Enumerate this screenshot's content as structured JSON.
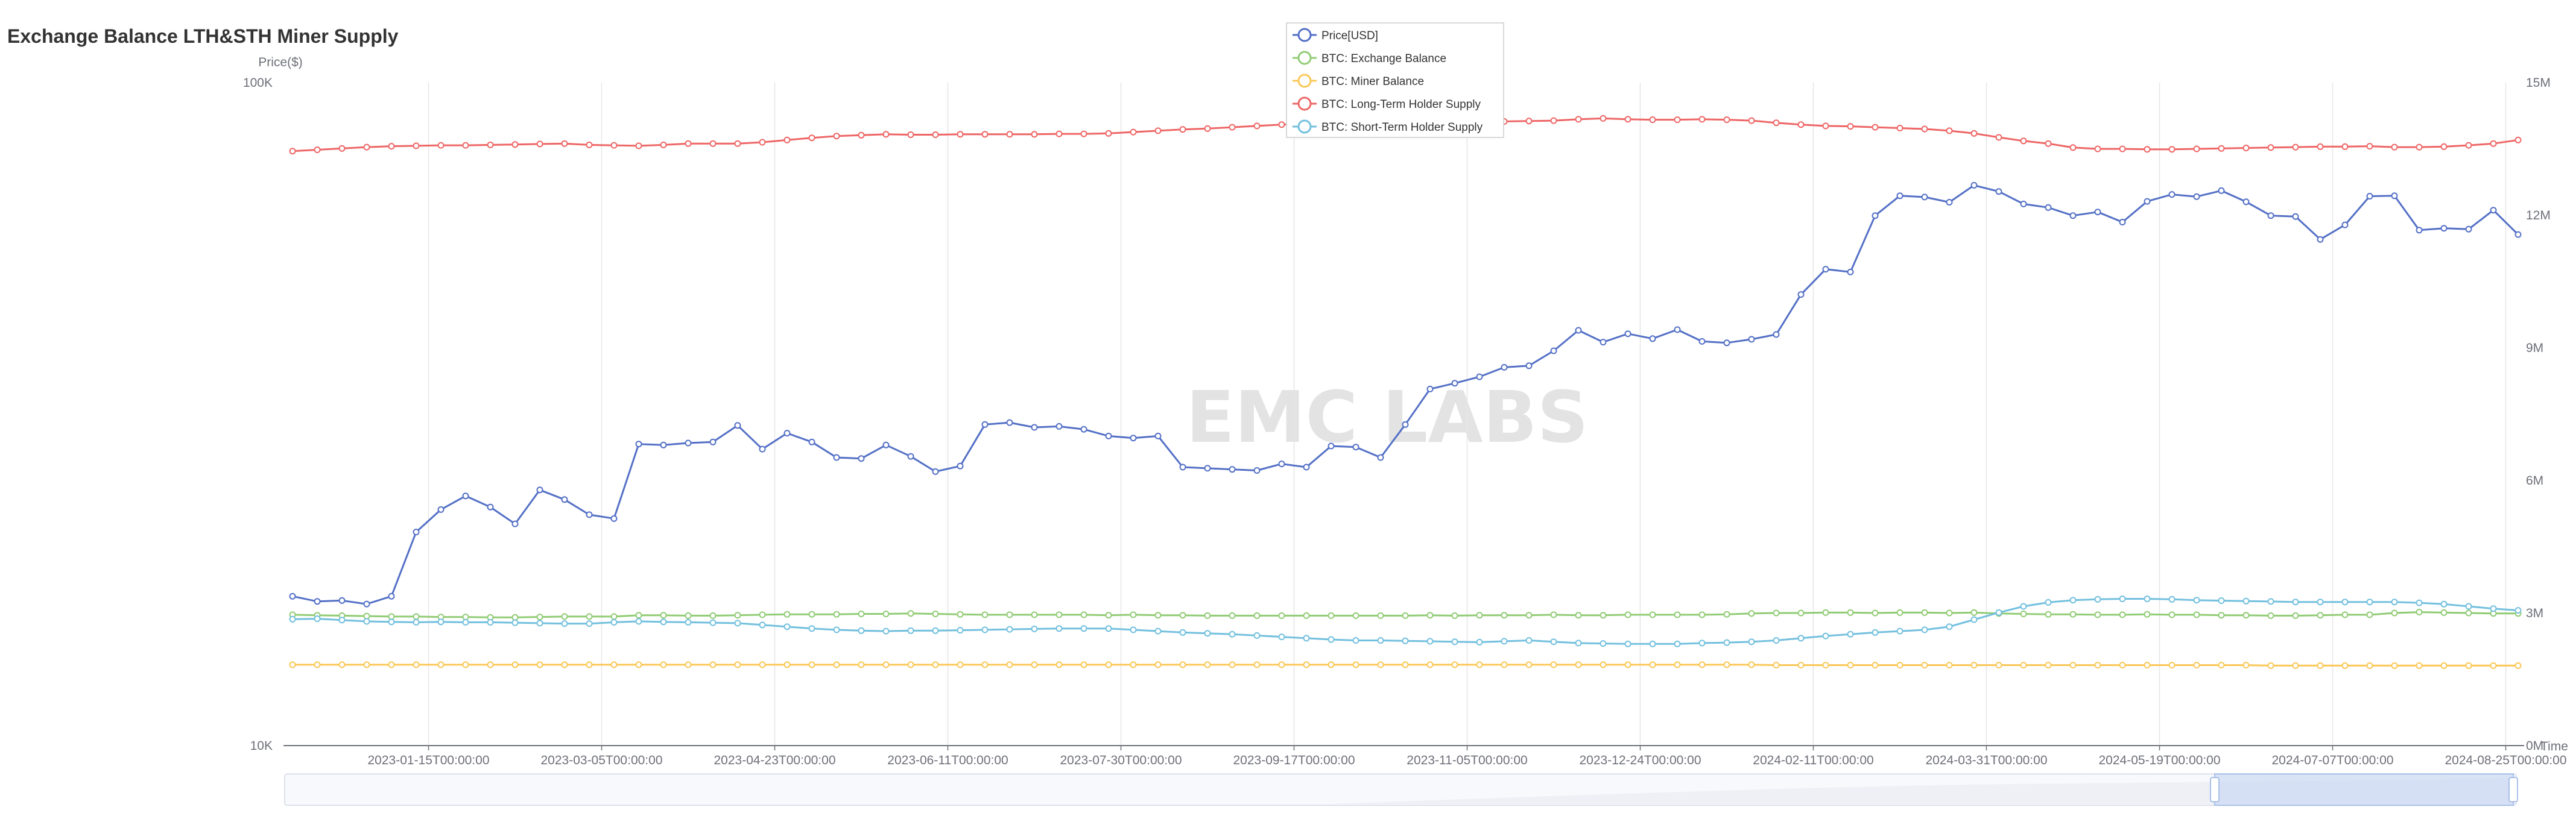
{
  "chart_data": {
    "type": "line",
    "title": "Exchange Balance LTH&STH Miner Supply",
    "watermark": "EMC LABS",
    "left_axis": {
      "name": "Price($)",
      "scale": "log",
      "min_label": "10K",
      "max_label": "100K",
      "min": 10000,
      "max": 100000
    },
    "right_axis": {
      "name": "",
      "min": 0,
      "max": 15000000,
      "ticks": [
        "0M",
        "3M",
        "6M",
        "9M",
        "12M",
        "15M"
      ],
      "tick_values": [
        0,
        3000000,
        6000000,
        9000000,
        12000000,
        15000000
      ]
    },
    "x_axis_name": "Time",
    "x_tick_labels": [
      "2023-01-15T00:00:00",
      "2023-03-05T00:00:00",
      "2023-04-23T00:00:00",
      "2023-06-11T00:00:00",
      "2023-07-30T00:00:00",
      "2023-09-17T00:00:00",
      "2023-11-05T00:00:00",
      "2023-12-24T00:00:00",
      "2024-02-11T00:00:00",
      "2024-03-31T00:00:00",
      "2024-05-19T00:00:00",
      "2024-07-07T00:00:00",
      "2024-08-25T00:00:00"
    ],
    "x_tick_positions": [
      5.5,
      12.5,
      19.5,
      26.5,
      33.5,
      40.5,
      47.5,
      54.5,
      61.5,
      68.5,
      75.5,
      82.5,
      89.5
    ],
    "legend_position": "top-center",
    "grid": "vertical",
    "series": [
      {
        "name": "Price[USD]",
        "color": "#5470c6",
        "axis": "left",
        "values": [
          16800,
          16500,
          16550,
          16350,
          16800,
          21000,
          22700,
          23800,
          22900,
          21600,
          24300,
          23500,
          22300,
          22000,
          28500,
          28400,
          28600,
          28700,
          30400,
          28000,
          29600,
          28700,
          27200,
          27100,
          28400,
          27300,
          25900,
          26400,
          30500,
          30700,
          30200,
          30300,
          30000,
          29300,
          29100,
          29300,
          26300,
          26200,
          26100,
          26000,
          26600,
          26300,
          28300,
          28200,
          27200,
          30500,
          34500,
          35200,
          36000,
          37200,
          37400,
          39400,
          42300,
          40600,
          41800,
          41100,
          42400,
          40700,
          40500,
          41000,
          41700,
          47900,
          52300,
          51800,
          63000,
          67500,
          67200,
          66000,
          70000,
          68500,
          65600,
          64800,
          63000,
          63800,
          61600,
          66200,
          67800,
          67300,
          68700,
          66100,
          63000,
          62800,
          58000,
          61000,
          67400,
          67500,
          59900,
          60300,
          60100,
          64200,
          59000
        ]
      },
      {
        "name": "BTC: Exchange Balance",
        "color": "#91cc75",
        "axis": "right",
        "values": [
          2960000,
          2950000,
          2940000,
          2930000,
          2920000,
          2920000,
          2910000,
          2910000,
          2900000,
          2900000,
          2910000,
          2920000,
          2920000,
          2920000,
          2950000,
          2950000,
          2940000,
          2940000,
          2950000,
          2960000,
          2970000,
          2970000,
          2970000,
          2980000,
          2980000,
          2990000,
          2980000,
          2970000,
          2960000,
          2960000,
          2960000,
          2960000,
          2960000,
          2950000,
          2960000,
          2950000,
          2950000,
          2940000,
          2940000,
          2940000,
          2940000,
          2940000,
          2940000,
          2940000,
          2940000,
          2940000,
          2950000,
          2940000,
          2950000,
          2950000,
          2950000,
          2960000,
          2950000,
          2950000,
          2960000,
          2960000,
          2960000,
          2960000,
          2970000,
          2990000,
          3000000,
          3000000,
          3010000,
          3010000,
          3000000,
          3010000,
          3010000,
          3000000,
          3010000,
          2990000,
          2980000,
          2970000,
          2970000,
          2960000,
          2960000,
          2970000,
          2960000,
          2960000,
          2950000,
          2950000,
          2940000,
          2940000,
          2950000,
          2960000,
          2960000,
          3000000,
          3020000,
          3010000,
          3000000,
          2990000,
          2990000
        ]
      },
      {
        "name": "BTC: Miner Balance",
        "color": "#fac858",
        "axis": "right",
        "values": [
          1830000,
          1830000,
          1830000,
          1830000,
          1830000,
          1830000,
          1830000,
          1830000,
          1830000,
          1830000,
          1830000,
          1830000,
          1830000,
          1830000,
          1830000,
          1830000,
          1830000,
          1830000,
          1830000,
          1830000,
          1830000,
          1830000,
          1830000,
          1830000,
          1830000,
          1830000,
          1830000,
          1830000,
          1830000,
          1830000,
          1830000,
          1830000,
          1830000,
          1830000,
          1830000,
          1830000,
          1830000,
          1830000,
          1830000,
          1830000,
          1830000,
          1830000,
          1830000,
          1830000,
          1830000,
          1830000,
          1830000,
          1830000,
          1830000,
          1830000,
          1830000,
          1830000,
          1830000,
          1830000,
          1830000,
          1830000,
          1830000,
          1830000,
          1830000,
          1830000,
          1820000,
          1820000,
          1820000,
          1820000,
          1820000,
          1820000,
          1820000,
          1820000,
          1820000,
          1820000,
          1820000,
          1820000,
          1820000,
          1820000,
          1820000,
          1820000,
          1820000,
          1820000,
          1820000,
          1820000,
          1810000,
          1810000,
          1810000,
          1810000,
          1810000,
          1810000,
          1810000,
          1810000,
          1810000,
          1810000,
          1810000
        ]
      },
      {
        "name": "BTC: Long-Term Holder Supply",
        "color": "#ee6666",
        "axis": "right",
        "values": [
          13450000,
          13480000,
          13510000,
          13540000,
          13560000,
          13570000,
          13580000,
          13580000,
          13590000,
          13600000,
          13610000,
          13620000,
          13590000,
          13580000,
          13570000,
          13590000,
          13620000,
          13620000,
          13620000,
          13650000,
          13700000,
          13750000,
          13790000,
          13810000,
          13830000,
          13820000,
          13820000,
          13830000,
          13830000,
          13830000,
          13830000,
          13840000,
          13840000,
          13850000,
          13880000,
          13910000,
          13940000,
          13960000,
          13990000,
          14020000,
          14050000,
          14070000,
          14090000,
          14110000,
          14120000,
          14130000,
          14140000,
          14140000,
          14130000,
          14120000,
          14130000,
          14140000,
          14170000,
          14190000,
          14170000,
          14160000,
          14160000,
          14170000,
          14160000,
          14140000,
          14090000,
          14050000,
          14020000,
          14010000,
          13990000,
          13970000,
          13950000,
          13910000,
          13850000,
          13760000,
          13680000,
          13620000,
          13530000,
          13500000,
          13500000,
          13490000,
          13490000,
          13500000,
          13510000,
          13520000,
          13530000,
          13540000,
          13550000,
          13550000,
          13560000,
          13540000,
          13540000,
          13550000,
          13580000,
          13620000,
          13700000
        ]
      },
      {
        "name": "BTC: Short-Term Holder Supply",
        "color": "#73c0de",
        "axis": "right",
        "values": [
          2860000,
          2870000,
          2840000,
          2810000,
          2800000,
          2790000,
          2800000,
          2790000,
          2790000,
          2780000,
          2770000,
          2760000,
          2760000,
          2790000,
          2810000,
          2800000,
          2790000,
          2780000,
          2770000,
          2730000,
          2690000,
          2650000,
          2620000,
          2600000,
          2590000,
          2600000,
          2600000,
          2610000,
          2620000,
          2630000,
          2640000,
          2650000,
          2650000,
          2650000,
          2620000,
          2590000,
          2560000,
          2540000,
          2520000,
          2490000,
          2460000,
          2430000,
          2400000,
          2380000,
          2380000,
          2370000,
          2360000,
          2350000,
          2340000,
          2360000,
          2380000,
          2350000,
          2320000,
          2310000,
          2300000,
          2300000,
          2300000,
          2320000,
          2330000,
          2350000,
          2380000,
          2430000,
          2480000,
          2520000,
          2560000,
          2590000,
          2620000,
          2690000,
          2850000,
          3010000,
          3150000,
          3240000,
          3290000,
          3310000,
          3320000,
          3320000,
          3310000,
          3290000,
          3280000,
          3270000,
          3260000,
          3250000,
          3250000,
          3250000,
          3250000,
          3250000,
          3230000,
          3200000,
          3150000,
          3100000,
          3060000
        ]
      }
    ]
  }
}
